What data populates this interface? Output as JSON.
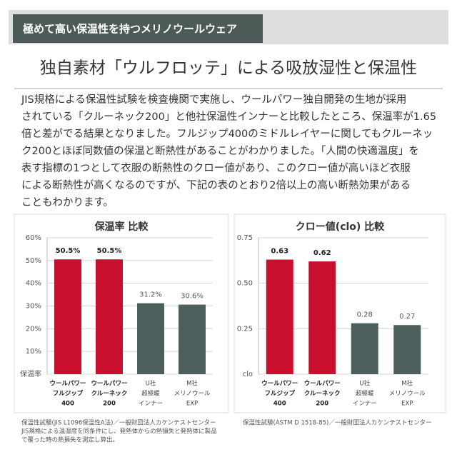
{
  "header": {
    "banner": "極めて高い保温性を持つメリノウールウェア",
    "title": "独自素材「ウルフロッテ」による吸放湿性と保温性"
  },
  "body": [
    "JIS規格による保温性試験を検査機関で実施し、ウールパワー独自開発の生地が採用",
    "されている「クルーネック200」と他社保温性インナーと比較したところ、保温率が1.65",
    "倍と差がでる結果となりました。フルジップ400のミドルレイヤーに関してもクルーネッ",
    "ク200とほぼ同数値の保温と断熱性があることがわかりました。「人間の快適温度」を",
    "表す指標の1つとして衣服の断熱性のクロー値があり、このクロー値が高いほど衣服",
    "による断熱性が高くなるのですが、下記の表のとおり2倍以上の高い断熱効果がある",
    "こともわかります。"
  ],
  "chart_data": [
    {
      "type": "bar",
      "title": "保温率 比較",
      "categories": [
        [
          "ウールパワー",
          "フルジップ",
          "400"
        ],
        [
          "ウールパワー",
          "クルーネック",
          "200"
        ],
        [
          "U社",
          "超極暖",
          "インナー"
        ],
        [
          "M社",
          "メリノウール",
          "EXP"
        ]
      ],
      "values": [
        50.5,
        50.5,
        31.2,
        30.6
      ],
      "value_labels": [
        "50.5%",
        "50.5%",
        "31.2%",
        "30.6%"
      ],
      "colors": [
        "#c8102e",
        "#c8102e",
        "#4c5f5c",
        "#4c5f5c"
      ],
      "ylim": [
        0,
        60
      ],
      "yticks": [
        {
          "value": 0,
          "label": "保温率"
        },
        {
          "value": 10,
          "label": "10%"
        },
        {
          "value": 20,
          "label": "20%"
        },
        {
          "value": 30,
          "label": "30%"
        },
        {
          "value": 40,
          "label": "40%"
        },
        {
          "value": 50,
          "label": "50%"
        },
        {
          "value": 60,
          "label": "60%"
        }
      ],
      "grid": true
    },
    {
      "type": "bar",
      "title": "クロー値(clo) 比較",
      "categories": [
        [
          "ウールパワー",
          "フルジップ",
          "400"
        ],
        [
          "ウールパワー",
          "クルーネック",
          "200"
        ],
        [
          "U社",
          "超極暖",
          "インナー"
        ],
        [
          "M社",
          "メリノウール",
          "EXP"
        ]
      ],
      "values": [
        0.63,
        0.62,
        0.28,
        0.27
      ],
      "colors": [
        "#c8102e",
        "#c8102e",
        "#4c5f5c",
        "#4c5f5c"
      ],
      "ylim": [
        0,
        0.75
      ],
      "yticks": [
        {
          "value": 0,
          "label": "clo"
        },
        0.25,
        {
          "value": 0.5,
          "label": "0.50"
        },
        0.75
      ],
      "grid": true
    }
  ],
  "footnotes": [
    [
      "保温性試験(JIS L1096保温性A法)／一般財団法人カケンテストセンター",
      "JIS規格による温湿度を同条件にし、発熱体からの熱損失と発熱体に製品",
      "で覆った時の熱損失を測定し算出。"
    ],
    [
      "保温性試験(ASTM D 1518-85)／一般財団法人カケンテストセンター"
    ]
  ]
}
